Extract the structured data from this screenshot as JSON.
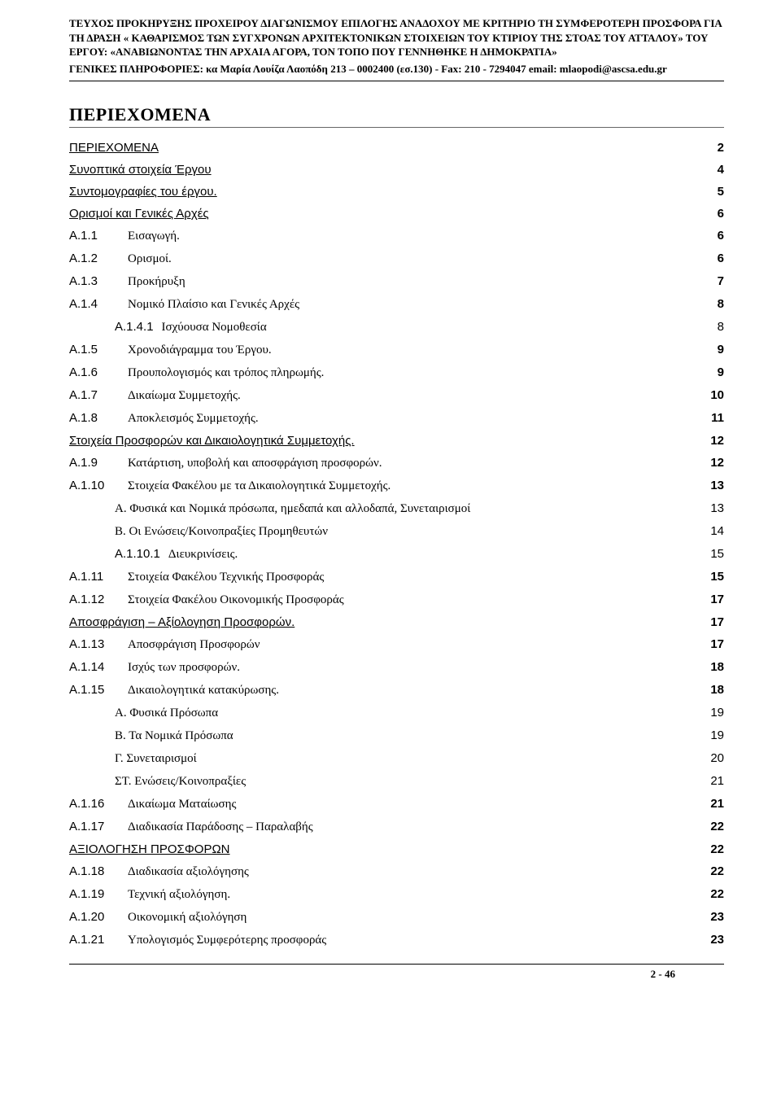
{
  "header": {
    "line1": "ΤΕΥΧΟΣ ΠΡΟΚΗΡΥΞΗΣ ΠΡΟΧΕΙΡΟΥ ΔΙΑΓΩΝΙΣΜΟΥ ΕΠΙΛΟΓΗΣ ΑΝΑΔΟΧΟΥ ΜΕ ΚΡΙΤΗΡΙΟ ΤΗ ΣΥΜΦΕΡΟΤΕΡΗ ΠΡΟΣΦΟΡΑ ΓΙΑ ΤΗ ΔΡΑΣΗ « ΚΑΘΑΡΙΣΜΟΣ ΤΩΝ ΣΥΓΧΡΟΝΩΝ ΑΡΧΙΤΕΚΤΟΝΙΚΩΝ ΣΤΟΙΧΕΙΩΝ  ΤΟΥ ΚΤΙΡΙΟΥ ΤΗΣ ΣΤΟΑΣ ΤΟΥ ΑΤΤΑΛΟΥ» ΤΟΥ ΕΡΓΟΥ:  «ΑΝΑΒΙΩΝΟΝΤΑΣ ΤΗΝ ΑΡΧΑΙΑ ΑΓΟΡΑ, ΤΟΝ ΤΟΠΟ ΠΟΥ ΓΕΝΝΗΘΗΚΕ Η ΔΗΜΟΚΡΑΤΙΑ»",
    "line2": "ΓΕΝΙΚΕΣ ΠΛΗΡΟΦΟΡΙΕΣ: κα Μαρία Λουίζα Λαοπόδη  213 – 0002400 (εσ.130)  - Fax: 210 - 7294047 email: mlaopodi@ascsa.edu.gr"
  },
  "title": "ΠΕΡΙΕΧΟΜΕΝΑ",
  "toc": [
    {
      "level": 0,
      "heading": true,
      "sec": "",
      "label": "ΠΕΡΙΕΧΟΜΕΝΑ",
      "page": "2"
    },
    {
      "level": 0,
      "heading": true,
      "sec": "",
      "label": "Συνοπτικά στοιχεία Έργου",
      "page": "4"
    },
    {
      "level": 0,
      "heading": true,
      "sec": "",
      "label": "Συντομογραφίες του έργου.",
      "page": "5"
    },
    {
      "level": 0,
      "heading": true,
      "sec": "",
      "label": "Ορισμοί και Γενικές Αρχές",
      "page": "6"
    },
    {
      "level": 1,
      "sec": "A.1.1",
      "label": "Εισαγωγή.",
      "page": "6"
    },
    {
      "level": 1,
      "sec": "A.1.2",
      "label": "Ορισμοί.",
      "page": "6"
    },
    {
      "level": 1,
      "sec": "A.1.3",
      "label": "Προκήρυξη",
      "page": "7"
    },
    {
      "level": 1,
      "sec": "A.1.4",
      "label": "Νομικό Πλαίσιο και Γενικές Αρχές",
      "page": "8"
    },
    {
      "level": 2,
      "sub": true,
      "sec": "A.1.4.1",
      "label": "Ισχύουσα Νομοθεσία",
      "page": "8"
    },
    {
      "level": 1,
      "sec": "A.1.5",
      "label": "Χρονοδιάγραμμα του Έργου.",
      "page": "9"
    },
    {
      "level": 1,
      "sec": "A.1.6",
      "label": "Προυπολογισμός και τρόπος πληρωμής.",
      "page": "9"
    },
    {
      "level": 1,
      "sec": "A.1.7",
      "label": "Δικαίωμα Συμμετοχής.",
      "page": "10"
    },
    {
      "level": 1,
      "sec": "A.1.8",
      "label": "Αποκλεισμός Συμμετοχής.",
      "page": "11"
    },
    {
      "level": 0,
      "heading": true,
      "sec": "",
      "label": "Στοιχεία Προσφορών και Δικαιολογητικά Συμμετοχής.",
      "page": "12"
    },
    {
      "level": 1,
      "sec": "A.1.9",
      "label": "Κατάρτιση, υποβολή και αποσφράγιση προσφορών.",
      "page": "12"
    },
    {
      "level": 1,
      "sec": "A.1.10",
      "label": "Στοιχεία Φακέλου με τα Δικαιολογητικά Συμμετοχής.",
      "page": "13"
    },
    {
      "level": 2,
      "sec": "",
      "label": "Α. Φυσικά και Νομικά πρόσωπα, ημεδαπά και αλλοδαπά, Συνεταιρισμοί",
      "page": "13"
    },
    {
      "level": 2,
      "sec": "",
      "label": "Β. Οι Ενώσεις/Κοινοπραξίες Προμηθευτών",
      "page": "14"
    },
    {
      "level": 2,
      "sub": true,
      "sec": "A.1.10.1",
      "label": "Διευκρινίσεις.",
      "page": "15"
    },
    {
      "level": 1,
      "sec": "A.1.11",
      "label": "Στοιχεία Φακέλου Τεχνικής Προσφοράς",
      "page": "15"
    },
    {
      "level": 1,
      "sec": "A.1.12",
      "label": "Στοιχεία Φακέλου Οικονομικής Προσφοράς",
      "page": "17"
    },
    {
      "level": 0,
      "heading": true,
      "sec": "",
      "label": "Αποσφράγιση – Αξίολογηση Προσφορών.",
      "page": "17"
    },
    {
      "level": 1,
      "sec": "A.1.13",
      "label": "Αποσφράγιση Προσφορών",
      "page": "17"
    },
    {
      "level": 1,
      "sec": "A.1.14",
      "label": "Ισχύς των προσφορών.",
      "page": "18"
    },
    {
      "level": 1,
      "sec": "A.1.15",
      "label": "Δικαιολογητικά κατακύρωσης.",
      "page": "18"
    },
    {
      "level": 2,
      "sec": "",
      "label": "Α. Φυσικά Πρόσωπα",
      "page": "19"
    },
    {
      "level": 2,
      "sec": "",
      "label": "Β. Τα Νομικά Πρόσωπα",
      "page": "19"
    },
    {
      "level": 2,
      "sec": "",
      "label": "Γ. Συνεταιρισμοί",
      "page": "20"
    },
    {
      "level": 2,
      "sec": "",
      "label": "ΣΤ. Ενώσεις/Κοινοπραξίες",
      "page": "21"
    },
    {
      "level": 1,
      "sec": "A.1.16",
      "label": "Δικαίωμα Ματαίωσης",
      "page": "21"
    },
    {
      "level": 1,
      "sec": "A.1.17",
      "label": "Διαδικασία Παράδοσης – Παραλαβής",
      "page": "22"
    },
    {
      "level": 0,
      "heading": true,
      "sec": "",
      "label": "ΑΞΙΟΛΟΓΗΣΗ ΠΡΟΣΦΟΡΩΝ",
      "page": "22"
    },
    {
      "level": 1,
      "sec": "A.1.18",
      "label": "Διαδικασία αξιολόγησης",
      "page": "22"
    },
    {
      "level": 1,
      "sec": "A.1.19",
      "label": "Τεχνική αξιολόγηση.",
      "page": "22"
    },
    {
      "level": 1,
      "sec": "A.1.20",
      "label": "Οικονομική αξιολόγηση",
      "page": "23"
    },
    {
      "level": 1,
      "sec": "A.1.21",
      "label": "Υπολογισμός Συμφερότερης προσφοράς",
      "page": "23"
    }
  ],
  "footer": "2 - 46"
}
